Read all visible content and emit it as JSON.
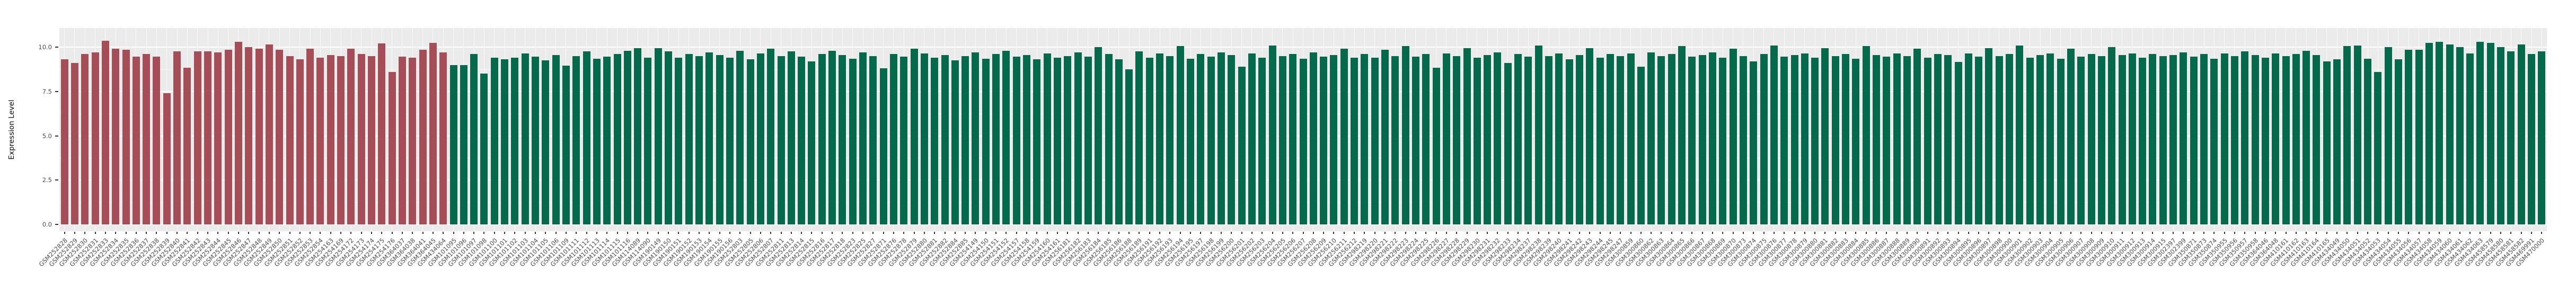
{
  "figure": {
    "ylabel": "Expression Level"
  },
  "chart_data": {
    "type": "bar",
    "title": "",
    "xlabel": "",
    "ylabel": "Expression Level",
    "ylim": [
      0,
      11.1
    ],
    "ytick_labels": [
      "0.0",
      "2.5",
      "5.0",
      "7.5",
      "10.0"
    ],
    "ytick_values": [
      0,
      2.5,
      5.0,
      7.5,
      10.0
    ],
    "yminor_values": [
      1.25,
      3.75,
      6.25,
      8.75
    ],
    "grid": "on",
    "legend_position": "none",
    "panel_background": "#EBEBEB",
    "gridline_color": "#FFFFFF",
    "axis_text_color": "#4d4d4d",
    "group_split_index": 38,
    "group_colors": {
      "left_red": "#A64E58",
      "right_green": "#05694B"
    },
    "categories": [
      "GSM252828",
      "GSM252829",
      "GSM252830",
      "GSM252831",
      "GSM252833",
      "GSM252834",
      "GSM252835",
      "GSM252836",
      "GSM252837",
      "GSM252838",
      "GSM252839",
      "GSM252840",
      "GSM252841",
      "GSM252842",
      "GSM252843",
      "GSM252844",
      "GSM252845",
      "GSM252846",
      "GSM252847",
      "GSM252848",
      "GSM252849",
      "GSM252850",
      "GSM252851",
      "GSM252852",
      "GSM252853",
      "GSM252854",
      "GSM254163",
      "GSM254169",
      "GSM254172",
      "GSM254173",
      "GSM254174",
      "GSM254175",
      "GSM254176",
      "GSM364037",
      "GSM364038",
      "GSM364041",
      "GSM364045",
      "GSM434064",
      "GSM101095",
      "GSM101096",
      "GSM101097",
      "GSM101098",
      "GSM101100",
      "GSM101101",
      "GSM101102",
      "GSM101103",
      "GSM101104",
      "GSM101105",
      "GSM101106",
      "GSM101109",
      "GSM101111",
      "GSM101112",
      "GSM101113",
      "GSM101114",
      "GSM101115",
      "GSM101116",
      "GSM114089",
      "GSM114090",
      "GSM190149",
      "GSM190150",
      "GSM190151",
      "GSM190152",
      "GSM190153",
      "GSM190154",
      "GSM190155",
      "GSM190156",
      "GSM252803",
      "GSM252805",
      "GSM252806",
      "GSM252807",
      "GSM252811",
      "GSM252813",
      "GSM252814",
      "GSM252815",
      "GSM252816",
      "GSM252817",
      "GSM252818",
      "GSM252823",
      "GSM252825",
      "GSM252827",
      "GSM252871",
      "GSM252876",
      "GSM252878",
      "GSM252879",
      "GSM252880",
      "GSM252881",
      "GSM252882",
      "GSM252884",
      "GSM252885",
      "GSM254149",
      "GSM254150",
      "GSM254151",
      "GSM254152",
      "GSM254157",
      "GSM254158",
      "GSM254159",
      "GSM254160",
      "GSM254161",
      "GSM256181",
      "GSM256182",
      "GSM256183",
      "GSM256184",
      "GSM256185",
      "GSM256186",
      "GSM256188",
      "GSM256189",
      "GSM256191",
      "GSM256192",
      "GSM256193",
      "GSM256194",
      "GSM256195",
      "GSM256197",
      "GSM256198",
      "GSM256199",
      "GSM256200",
      "GSM256201",
      "GSM256202",
      "GSM256203",
      "GSM256204",
      "GSM256205",
      "GSM256206",
      "GSM256207",
      "GSM256208",
      "GSM256209",
      "GSM256210",
      "GSM256211",
      "GSM256212",
      "GSM298219",
      "GSM298220",
      "GSM298221",
      "GSM298222",
      "GSM298223",
      "GSM298224",
      "GSM298225",
      "GSM298226",
      "GSM298227",
      "GSM298228",
      "GSM298229",
      "GSM298230",
      "GSM298231",
      "GSM298232",
      "GSM298233",
      "GSM298234",
      "GSM298237",
      "GSM298238",
      "GSM298239",
      "GSM298240",
      "GSM298241",
      "GSM298242",
      "GSM298243",
      "GSM298244",
      "GSM298245",
      "GSM298247",
      "GSM300859",
      "GSM300860",
      "GSM300862",
      "GSM300863",
      "GSM300864",
      "GSM300865",
      "GSM300866",
      "GSM300867",
      "GSM300868",
      "GSM300869",
      "GSM300870",
      "GSM300873",
      "GSM300874",
      "GSM300875",
      "GSM300876",
      "GSM300877",
      "GSM300878",
      "GSM300879",
      "GSM300880",
      "GSM300881",
      "GSM300882",
      "GSM300883",
      "GSM300884",
      "GSM300885",
      "GSM300886",
      "GSM300887",
      "GSM300888",
      "GSM300889",
      "GSM300890",
      "GSM300891",
      "GSM300892",
      "GSM300893",
      "GSM300894",
      "GSM300895",
      "GSM300896",
      "GSM300897",
      "GSM300898",
      "GSM300900",
      "GSM300901",
      "GSM300902",
      "GSM300903",
      "GSM300904",
      "GSM300905",
      "GSM300906",
      "GSM300907",
      "GSM300908",
      "GSM300909",
      "GSM300910",
      "GSM300911",
      "GSM300912",
      "GSM300913",
      "GSM300914",
      "GSM300915",
      "GSM302397",
      "GSM302399",
      "GSM350871",
      "GSM350873",
      "GSM350874",
      "GSM350955",
      "GSM350956",
      "GSM350957",
      "GSM350958",
      "GSM364046",
      "GSM364048",
      "GSM410161",
      "GSM410162",
      "GSM410163",
      "GSM410164",
      "GSM410165",
      "GSM434049",
      "GSM434050",
      "GSM434051",
      "GSM434052",
      "GSM434053",
      "GSM434054",
      "GSM434055",
      "GSM434056",
      "GSM434057",
      "GSM434058",
      "GSM434059",
      "GSM434060",
      "GSM434061",
      "GSM434062",
      "GSM434063",
      "GSM458579",
      "GSM458580",
      "GSM458581",
      "GSM458582",
      "GSM469991",
      "GSM470000"
    ],
    "values": [
      9.3,
      9.1,
      9.6,
      9.7,
      10.35,
      9.9,
      9.85,
      9.45,
      9.6,
      9.45,
      7.4,
      9.75,
      8.85,
      9.75,
      9.75,
      9.7,
      9.85,
      10.3,
      10.0,
      9.9,
      10.15,
      9.85,
      9.5,
      9.3,
      9.9,
      9.4,
      9.55,
      9.5,
      9.9,
      9.6,
      9.5,
      10.2,
      8.6,
      9.45,
      9.4,
      9.85,
      10.25,
      9.7,
      9.0,
      9.0,
      9.6,
      8.5,
      9.4,
      9.3,
      9.4,
      9.65,
      9.45,
      9.25,
      9.55,
      8.95,
      9.5,
      9.75,
      9.35,
      9.45,
      9.6,
      9.8,
      9.95,
      9.4,
      9.95,
      9.75,
      9.4,
      9.6,
      9.5,
      9.7,
      9.55,
      9.4,
      9.8,
      9.3,
      9.65,
      9.9,
      9.5,
      9.75,
      9.45,
      9.2,
      9.6,
      9.8,
      9.55,
      9.35,
      9.7,
      9.5,
      8.8,
      9.6,
      9.45,
      9.9,
      9.65,
      9.4,
      9.55,
      9.25,
      9.5,
      9.7,
      9.35,
      9.6,
      9.8,
      9.45,
      9.55,
      9.3,
      9.65,
      9.4,
      9.5,
      9.7,
      9.45,
      10.0,
      9.6,
      9.3,
      8.75,
      9.75,
      9.4,
      9.65,
      9.5,
      10.05,
      9.35,
      9.6,
      9.45,
      9.7,
      9.55,
      8.9,
      9.65,
      9.4,
      10.1,
      9.5,
      9.6,
      9.35,
      9.7,
      9.45,
      9.55,
      9.9,
      9.4,
      9.6,
      9.4,
      9.85,
      9.5,
      10.05,
      9.45,
      9.6,
      8.85,
      9.65,
      9.5,
      9.95,
      9.4,
      9.55,
      9.7,
      9.1,
      9.6,
      9.45,
      10.1,
      9.5,
      9.65,
      9.3,
      9.55,
      9.95,
      9.4,
      9.6,
      9.5,
      9.65,
      8.9,
      9.7,
      9.5,
      9.6,
      10.05,
      9.45,
      9.55,
      9.7,
      9.4,
      9.9,
      9.5,
      9.2,
      9.6,
      10.1,
      9.45,
      9.55,
      9.65,
      9.4,
      9.95,
      9.5,
      9.6,
      9.35,
      10.05,
      9.55,
      9.45,
      9.65,
      9.5,
      9.9,
      9.4,
      9.6,
      9.55,
      9.15,
      9.65,
      9.45,
      9.95,
      9.5,
      9.6,
      10.1,
      9.4,
      9.55,
      9.65,
      9.35,
      9.9,
      9.45,
      9.6,
      9.5,
      10.0,
      9.55,
      9.65,
      9.4,
      9.6,
      9.5,
      9.55,
      9.7,
      9.45,
      9.6,
      9.35,
      9.65,
      9.5,
      9.75,
      9.55,
      9.4,
      9.65,
      9.5,
      9.6,
      9.8,
      9.55,
      9.2,
      9.3,
      10.05,
      10.1,
      9.35,
      8.6,
      10.0,
      9.3,
      9.85,
      9.85,
      10.25,
      10.3,
      10.15,
      10.0,
      9.65,
      10.3,
      10.25,
      10.0,
      9.75,
      10.15,
      9.6,
      9.75
    ]
  }
}
